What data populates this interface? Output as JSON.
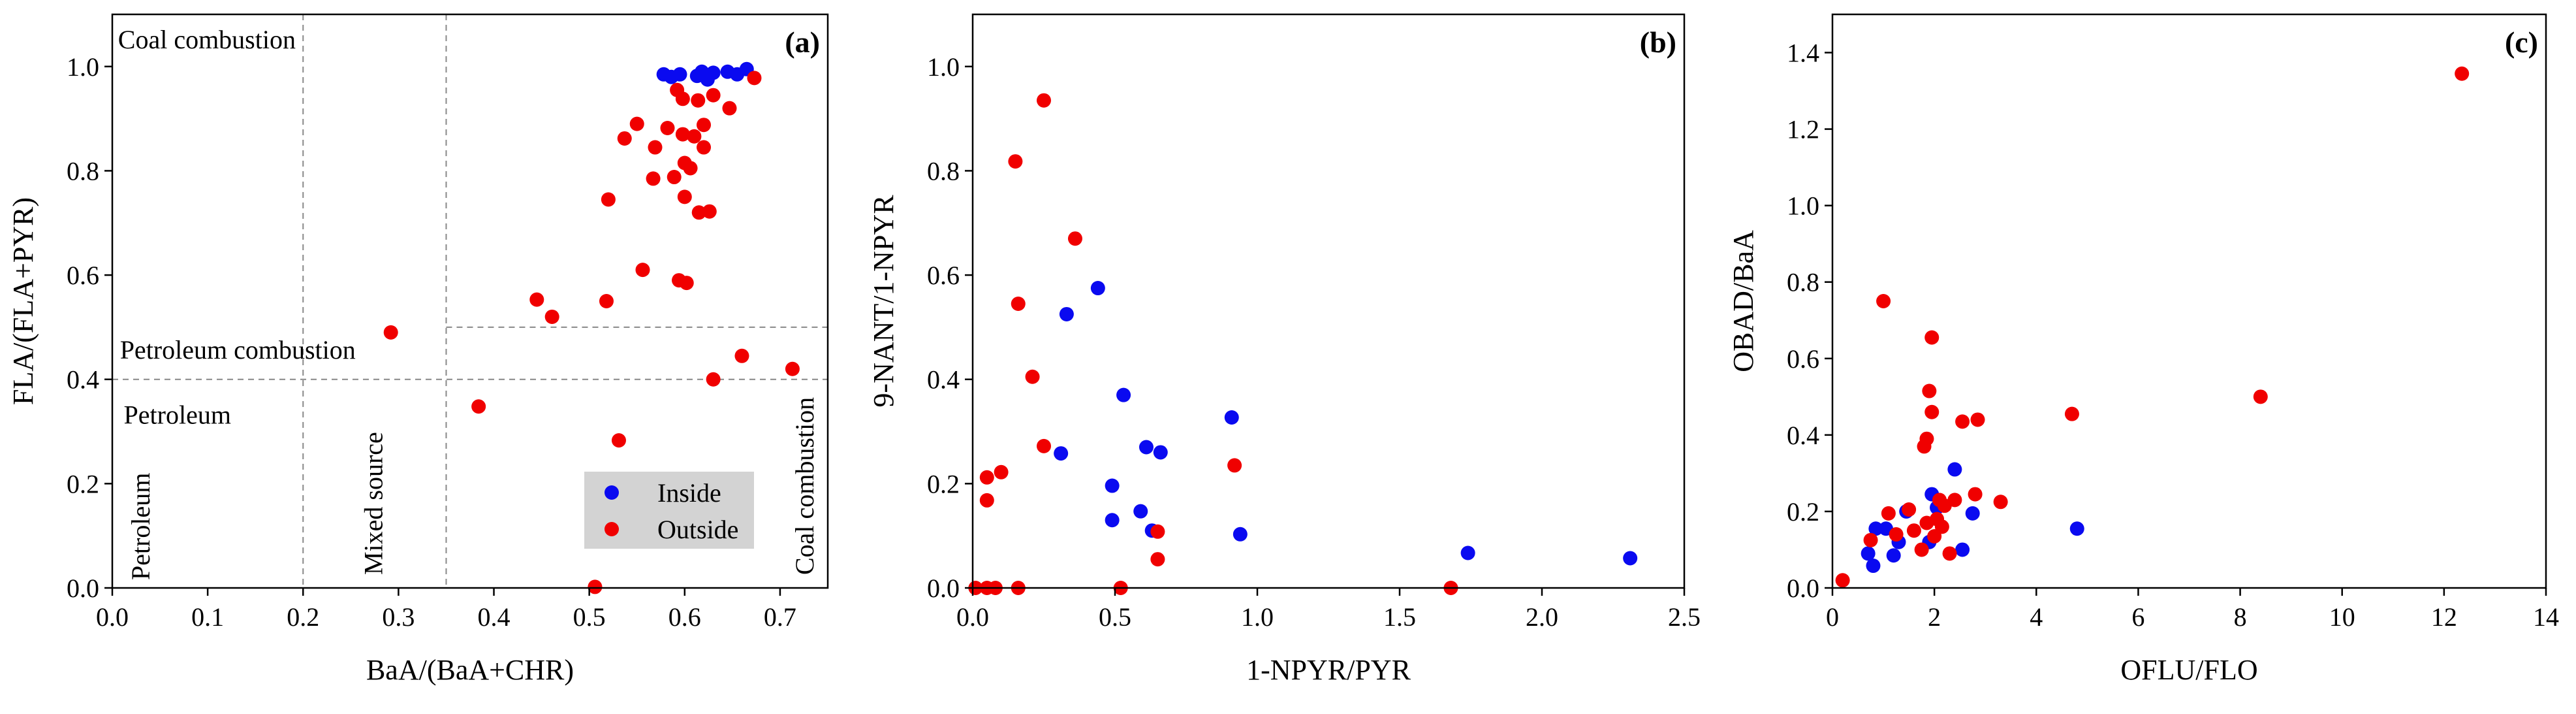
{
  "colors": {
    "inside": "#0a0af0",
    "outside": "#f00000",
    "legend_bg": "#d3d3d3"
  },
  "chart_data": [
    {
      "id": "a",
      "type": "scatter",
      "panel_label": "(a)",
      "xlabel": "BaA/(BaA+CHR)",
      "ylabel": "FLA/(FLA+PYR)",
      "xlim": [
        0,
        0.75
      ],
      "ylim": [
        0,
        1.1
      ],
      "xticks": [
        0.0,
        0.1,
        0.2,
        0.3,
        0.4,
        0.5,
        0.6,
        0.7
      ],
      "xtick_labels": [
        "0.0",
        "0.1",
        "0.2",
        "0.3",
        "0.4",
        "0.5",
        "0.6",
        "0.7"
      ],
      "yticks": [
        0.0,
        0.2,
        0.4,
        0.6,
        0.8,
        1.0
      ],
      "ytick_labels": [
        "0.0",
        "0.2",
        "0.4",
        "0.6",
        "0.8",
        "1.0"
      ],
      "ref_lines": [
        {
          "axis": "x",
          "value": 0.2
        },
        {
          "axis": "x",
          "value": 0.35
        },
        {
          "axis": "y",
          "value": 0.5,
          "xmin": 0.35
        },
        {
          "axis": "y",
          "value": 0.4
        }
      ],
      "annotations": [
        {
          "text": "Coal combustion",
          "x": 0.006,
          "y": 1.035,
          "rotate": 0,
          "anchor": "start"
        },
        {
          "text": "Petroleum combustion",
          "x": 0.008,
          "y": 0.44,
          "rotate": 0,
          "anchor": "start"
        },
        {
          "text": "Petroleum",
          "x": 0.012,
          "y": 0.315,
          "rotate": 0,
          "anchor": "start"
        },
        {
          "text": "Petroleum",
          "x": 0.039,
          "y": 0.015,
          "rotate": -90,
          "anchor": "start"
        },
        {
          "text": "Mixed source",
          "x": 0.283,
          "y": 0.025,
          "rotate": -90,
          "anchor": "start"
        },
        {
          "text": "Coal combustion",
          "x": 0.735,
          "y": 0.025,
          "rotate": -90,
          "anchor": "start"
        }
      ],
      "legend": {
        "location": "lower-right",
        "entries": [
          "Inside",
          "Outside"
        ]
      },
      "series": [
        {
          "name": "Inside",
          "points": [
            [
              0.578,
              0.985
            ],
            [
              0.586,
              0.98
            ],
            [
              0.595,
              0.985
            ],
            [
              0.613,
              0.982
            ],
            [
              0.618,
              0.99
            ],
            [
              0.624,
              0.975
            ],
            [
              0.63,
              0.988
            ],
            [
              0.645,
              0.99
            ],
            [
              0.655,
              0.985
            ],
            [
              0.665,
              0.995
            ]
          ]
        },
        {
          "name": "Outside",
          "points": [
            [
              0.592,
              0.955
            ],
            [
              0.598,
              0.938
            ],
            [
              0.614,
              0.935
            ],
            [
              0.63,
              0.945
            ],
            [
              0.673,
              0.978
            ],
            [
              0.55,
              0.89
            ],
            [
              0.582,
              0.882
            ],
            [
              0.598,
              0.87
            ],
            [
              0.62,
              0.888
            ],
            [
              0.647,
              0.92
            ],
            [
              0.537,
              0.862
            ],
            [
              0.569,
              0.845
            ],
            [
              0.61,
              0.866
            ],
            [
              0.62,
              0.845
            ],
            [
              0.6,
              0.815
            ],
            [
              0.606,
              0.805
            ],
            [
              0.567,
              0.785
            ],
            [
              0.589,
              0.788
            ],
            [
              0.52,
              0.745
            ],
            [
              0.6,
              0.75
            ],
            [
              0.615,
              0.72
            ],
            [
              0.626,
              0.722
            ],
            [
              0.556,
              0.61
            ],
            [
              0.594,
              0.59
            ],
            [
              0.602,
              0.585
            ],
            [
              0.518,
              0.55
            ],
            [
              0.445,
              0.553
            ],
            [
              0.461,
              0.52
            ],
            [
              0.292,
              0.49
            ],
            [
              0.713,
              0.42
            ],
            [
              0.66,
              0.445
            ],
            [
              0.63,
              0.4
            ],
            [
              0.384,
              0.348
            ],
            [
              0.531,
              0.283
            ],
            [
              0.506,
              0.002
            ]
          ]
        }
      ]
    },
    {
      "id": "b",
      "type": "scatter",
      "panel_label": "(b)",
      "xlabel": "1-NPYR/PYR",
      "ylabel": "9-NANT/1-NPYR",
      "xlim": [
        0,
        2.5
      ],
      "ylim": [
        0,
        1.1
      ],
      "xticks": [
        0.0,
        0.5,
        1.0,
        1.5,
        2.0,
        2.5
      ],
      "xtick_labels": [
        "0.0",
        "0.5",
        "1.0",
        "1.5",
        "2.0",
        "2.5"
      ],
      "yticks": [
        0.0,
        0.2,
        0.4,
        0.6,
        0.8,
        1.0
      ],
      "ytick_labels": [
        "0.0",
        "0.2",
        "0.4",
        "0.6",
        "0.8",
        "1.0"
      ],
      "series": [
        {
          "name": "Inside",
          "points": [
            [
              0.44,
              0.575
            ],
            [
              0.33,
              0.525
            ],
            [
              0.53,
              0.37
            ],
            [
              0.91,
              0.327
            ],
            [
              0.61,
              0.27
            ],
            [
              0.31,
              0.258
            ],
            [
              0.66,
              0.26
            ],
            [
              0.49,
              0.196
            ],
            [
              0.59,
              0.147
            ],
            [
              0.49,
              0.13
            ],
            [
              0.63,
              0.11
            ],
            [
              0.94,
              0.103
            ],
            [
              1.74,
              0.067
            ],
            [
              2.31,
              0.057
            ]
          ]
        },
        {
          "name": "Outside",
          "points": [
            [
              0.25,
              0.935
            ],
            [
              0.15,
              0.818
            ],
            [
              0.36,
              0.67
            ],
            [
              0.16,
              0.545
            ],
            [
              0.21,
              0.405
            ],
            [
              0.25,
              0.272
            ],
            [
              0.92,
              0.235
            ],
            [
              0.1,
              0.222
            ],
            [
              0.05,
              0.212
            ],
            [
              0.05,
              0.168
            ],
            [
              0.65,
              0.108
            ],
            [
              0.65,
              0.055
            ],
            [
              0.01,
              0.0
            ],
            [
              0.05,
              0.0
            ],
            [
              0.08,
              0.0
            ],
            [
              0.16,
              0.0
            ],
            [
              0.52,
              0.0
            ],
            [
              1.68,
              0.0
            ]
          ]
        }
      ]
    },
    {
      "id": "c",
      "type": "scatter",
      "panel_label": "(c)",
      "xlabel": "OFLU/FLO",
      "ylabel": "OBAD/BaA",
      "xlim": [
        0,
        14
      ],
      "ylim": [
        0,
        1.5
      ],
      "xticks": [
        0,
        2,
        4,
        6,
        8,
        10,
        12,
        14
      ],
      "xtick_labels": [
        "0",
        "2",
        "4",
        "6",
        "8",
        "10",
        "12",
        "14"
      ],
      "yticks": [
        0.0,
        0.2,
        0.4,
        0.6,
        0.8,
        1.0,
        1.2,
        1.4
      ],
      "ytick_labels": [
        "0.0",
        "0.2",
        "0.4",
        "0.6",
        "0.8",
        "1.0",
        "1.2",
        "1.4"
      ],
      "series": [
        {
          "name": "Inside",
          "points": [
            [
              2.4,
              0.31
            ],
            [
              1.95,
              0.245
            ],
            [
              2.05,
              0.21
            ],
            [
              2.75,
              0.195
            ],
            [
              4.8,
              0.155
            ],
            [
              0.85,
              0.155
            ],
            [
              1.05,
              0.155
            ],
            [
              1.3,
              0.12
            ],
            [
              1.9,
              0.12
            ],
            [
              2.55,
              0.1
            ],
            [
              0.7,
              0.09
            ],
            [
              1.2,
              0.085
            ],
            [
              0.8,
              0.058
            ],
            [
              1.45,
              0.2
            ]
          ]
        },
        {
          "name": "Outside",
          "points": [
            [
              12.35,
              1.345
            ],
            [
              1.0,
              0.75
            ],
            [
              1.95,
              0.655
            ],
            [
              1.9,
              0.515
            ],
            [
              8.4,
              0.5
            ],
            [
              1.95,
              0.46
            ],
            [
              4.7,
              0.455
            ],
            [
              2.85,
              0.44
            ],
            [
              2.55,
              0.435
            ],
            [
              1.85,
              0.39
            ],
            [
              1.8,
              0.37
            ],
            [
              2.8,
              0.245
            ],
            [
              2.4,
              0.23
            ],
            [
              3.3,
              0.225
            ],
            [
              2.1,
              0.23
            ],
            [
              2.2,
              0.215
            ],
            [
              1.1,
              0.195
            ],
            [
              1.5,
              0.205
            ],
            [
              2.05,
              0.18
            ],
            [
              1.85,
              0.17
            ],
            [
              2.15,
              0.16
            ],
            [
              1.6,
              0.15
            ],
            [
              1.25,
              0.14
            ],
            [
              0.75,
              0.125
            ],
            [
              2.0,
              0.135
            ],
            [
              1.75,
              0.1
            ],
            [
              2.3,
              0.09
            ],
            [
              0.2,
              0.02
            ]
          ]
        }
      ]
    }
  ]
}
